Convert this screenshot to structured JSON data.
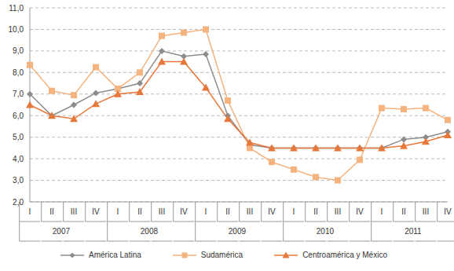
{
  "chart_data": {
    "type": "line",
    "categories": [
      "I",
      "II",
      "III",
      "IV",
      "I",
      "II",
      "III",
      "IV",
      "I",
      "II",
      "III",
      "IV",
      "I",
      "II",
      "III",
      "IV",
      "I",
      "II",
      "III",
      "IV"
    ],
    "groups": [
      "2007",
      "2008",
      "2009",
      "2010",
      "2011"
    ],
    "series": [
      {
        "name": "América Latina",
        "color": "#8c8c8c",
        "marker": "diamond",
        "values": [
          7.0,
          6.0,
          6.5,
          7.05,
          7.25,
          7.5,
          9.0,
          8.75,
          8.85,
          6.0,
          4.65,
          4.5,
          4.5,
          4.5,
          4.5,
          4.5,
          4.5,
          4.9,
          5.0,
          5.25
        ]
      },
      {
        "name": "Sudamérica",
        "color": "#f5b37f",
        "marker": "square",
        "values": [
          8.35,
          7.15,
          6.95,
          8.25,
          7.25,
          8.0,
          9.7,
          9.85,
          10.0,
          6.7,
          4.5,
          3.85,
          3.5,
          3.15,
          3.0,
          3.95,
          6.35,
          6.3,
          6.35,
          5.8
        ]
      },
      {
        "name": "Centroamérica y México",
        "color": "#e8773a",
        "marker": "triangle",
        "values": [
          6.5,
          6.0,
          5.85,
          6.55,
          7.0,
          7.1,
          8.5,
          8.5,
          7.3,
          5.85,
          4.75,
          4.5,
          4.5,
          4.5,
          4.5,
          4.5,
          4.5,
          4.6,
          4.8,
          5.1
        ]
      }
    ],
    "ylim": [
      2,
      11
    ],
    "yticks": [
      {
        "value": 2,
        "label": "2,0"
      },
      {
        "value": 3,
        "label": "3,0"
      },
      {
        "value": 4,
        "label": "4,0"
      },
      {
        "value": 5,
        "label": "5,0"
      },
      {
        "value": 6,
        "label": "6,0"
      },
      {
        "value": 7,
        "label": "7,0"
      },
      {
        "value": 8,
        "label": "8,0"
      },
      {
        "value": 9,
        "label": "9,0"
      },
      {
        "value": 10,
        "label": "10,0"
      },
      {
        "value": 11,
        "label": "11,0"
      }
    ],
    "grid": true,
    "legend": "bottom"
  }
}
